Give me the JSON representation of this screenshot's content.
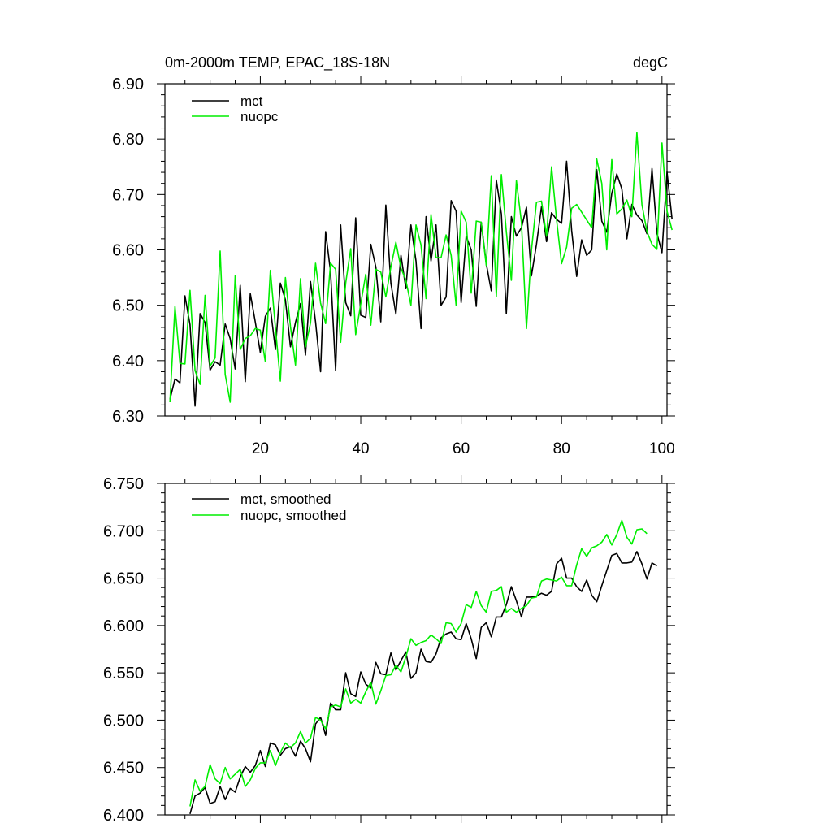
{
  "figure": {
    "title": "0m-2000m TEMP, EPAC_18S-18N",
    "units": "degC"
  },
  "chart_data": [
    {
      "type": "line",
      "panel": "top",
      "title": "0m-2000m TEMP, EPAC_18S-18N",
      "units": "degC",
      "xlim": [
        1,
        101
      ],
      "ylim": [
        6.3,
        6.9
      ],
      "yticks": [
        "6.30",
        "6.40",
        "6.50",
        "6.60",
        "6.70",
        "6.80",
        "6.90"
      ],
      "xticks": [
        "20",
        "40",
        "60",
        "80",
        "100"
      ],
      "x_start": 2,
      "legend": [
        "mct",
        "nuopc"
      ],
      "series": [
        {
          "name": "mct",
          "color": "#000000",
          "values": [
            6.33,
            6.367,
            6.36,
            6.517,
            6.465,
            6.318,
            6.485,
            6.469,
            6.383,
            6.398,
            6.392,
            6.466,
            6.44,
            6.385,
            6.536,
            6.362,
            6.521,
            6.47,
            6.415,
            6.48,
            6.495,
            6.42,
            6.54,
            6.51,
            6.425,
            6.469,
            6.503,
            6.41,
            6.543,
            6.47,
            6.38,
            6.633,
            6.56,
            6.382,
            6.645,
            6.505,
            6.481,
            6.658,
            6.482,
            6.478,
            6.61,
            6.569,
            6.47,
            6.681,
            6.54,
            6.484,
            6.59,
            6.53,
            6.645,
            6.58,
            6.458,
            6.66,
            6.58,
            6.645,
            6.5,
            6.515,
            6.689,
            6.67,
            6.505,
            6.625,
            6.6,
            6.498,
            6.65,
            6.575,
            6.526,
            6.726,
            6.665,
            6.485,
            6.66,
            6.625,
            6.64,
            6.677,
            6.553,
            6.61,
            6.678,
            6.615,
            6.667,
            6.655,
            6.648,
            6.76,
            6.635,
            6.552,
            6.618,
            6.59,
            6.6,
            6.745,
            6.652,
            6.632,
            6.702,
            6.737,
            6.71,
            6.62,
            6.682,
            6.663,
            6.653,
            6.629,
            6.747,
            6.63,
            6.595,
            6.741,
            6.655
          ]
        },
        {
          "name": "nuopc",
          "color": "#00ee00",
          "values": [
            6.325,
            6.498,
            6.395,
            6.394,
            6.527,
            6.382,
            6.357,
            6.518,
            6.39,
            6.405,
            6.598,
            6.375,
            6.325,
            6.554,
            6.42,
            6.44,
            6.445,
            6.458,
            6.455,
            6.398,
            6.563,
            6.46,
            6.363,
            6.55,
            6.462,
            6.392,
            6.548,
            6.425,
            6.468,
            6.576,
            6.504,
            6.467,
            6.576,
            6.565,
            6.433,
            6.54,
            6.602,
            6.447,
            6.502,
            6.556,
            6.464,
            6.565,
            6.56,
            6.515,
            6.569,
            6.614,
            6.567,
            6.545,
            6.5,
            6.645,
            6.609,
            6.512,
            6.664,
            6.586,
            6.586,
            6.627,
            6.59,
            6.5,
            6.67,
            6.65,
            6.522,
            6.652,
            6.65,
            6.572,
            6.734,
            6.516,
            6.736,
            6.633,
            6.545,
            6.725,
            6.65,
            6.458,
            6.599,
            6.686,
            6.688,
            6.625,
            6.75,
            6.655,
            6.575,
            6.605,
            6.675,
            6.682,
            6.668,
            6.654,
            6.64,
            6.764,
            6.72,
            6.6,
            6.763,
            6.665,
            6.674,
            6.69,
            6.66,
            6.812,
            6.682,
            6.633,
            6.61,
            6.601,
            6.793,
            6.67,
            6.636
          ]
        }
      ]
    },
    {
      "type": "line",
      "panel": "bottom",
      "xlim": [
        1,
        101
      ],
      "ylim": [
        6.4,
        6.75
      ],
      "yticks": [
        "6.400",
        "6.450",
        "6.500",
        "6.550",
        "6.600",
        "6.650",
        "6.700",
        "6.750"
      ],
      "x_start": 6,
      "legend": [
        "mct, smoothed",
        "nuopc, smoothed"
      ],
      "series": [
        {
          "name": "mct, smoothed",
          "color": "#000000",
          "values": [
            6.401,
            6.42,
            6.423,
            6.429,
            6.412,
            6.414,
            6.43,
            6.416,
            6.428,
            6.424,
            6.44,
            6.451,
            6.445,
            6.452,
            6.468,
            6.451,
            6.476,
            6.474,
            6.463,
            6.47,
            6.472,
            6.462,
            6.478,
            6.47,
            6.456,
            6.496,
            6.503,
            6.484,
            6.518,
            6.511,
            6.511,
            6.55,
            6.528,
            6.525,
            6.551,
            6.538,
            6.534,
            6.561,
            6.549,
            6.548,
            6.571,
            6.553,
            6.563,
            6.572,
            6.544,
            6.55,
            6.575,
            6.562,
            6.561,
            6.57,
            6.587,
            6.591,
            6.593,
            6.586,
            6.585,
            6.602,
            6.586,
            6.565,
            6.598,
            6.603,
            6.588,
            6.609,
            6.609,
            6.622,
            6.641,
            6.626,
            6.609,
            6.63,
            6.63,
            6.631,
            6.634,
            6.632,
            6.636,
            6.665,
            6.671,
            6.65,
            6.65,
            6.641,
            6.636,
            6.648,
            6.632,
            6.625,
            6.642,
            6.658,
            6.674,
            6.676,
            6.666,
            6.666,
            6.667,
            6.678,
            6.665,
            6.649,
            6.666,
            6.663
          ]
        },
        {
          "name": "nuopc, smoothed",
          "color": "#00ee00",
          "values": [
            6.409,
            6.437,
            6.425,
            6.43,
            6.453,
            6.438,
            6.433,
            6.45,
            6.438,
            6.443,
            6.448,
            6.43,
            6.437,
            6.449,
            6.455,
            6.455,
            6.468,
            6.452,
            6.466,
            6.476,
            6.471,
            6.476,
            6.488,
            6.476,
            6.481,
            6.503,
            6.5,
            6.491,
            6.514,
            6.516,
            6.514,
            6.533,
            6.518,
            6.522,
            6.518,
            6.53,
            6.54,
            6.517,
            6.531,
            6.547,
            6.548,
            6.558,
            6.551,
            6.567,
            6.586,
            6.579,
            6.582,
            6.584,
            6.59,
            6.586,
            6.581,
            6.603,
            6.602,
            6.593,
            6.602,
            6.622,
            6.619,
            6.636,
            6.621,
            6.614,
            6.636,
            6.637,
            6.641,
            6.614,
            6.618,
            6.614,
            6.618,
            6.621,
            6.629,
            6.63,
            6.647,
            6.649,
            6.648,
            6.647,
            6.651,
            6.642,
            6.642,
            6.664,
            6.681,
            6.673,
            6.682,
            6.684,
            6.688,
            6.696,
            6.685,
            6.696,
            6.711,
            6.693,
            6.686,
            6.701,
            6.702,
            6.697
          ]
        }
      ]
    }
  ]
}
